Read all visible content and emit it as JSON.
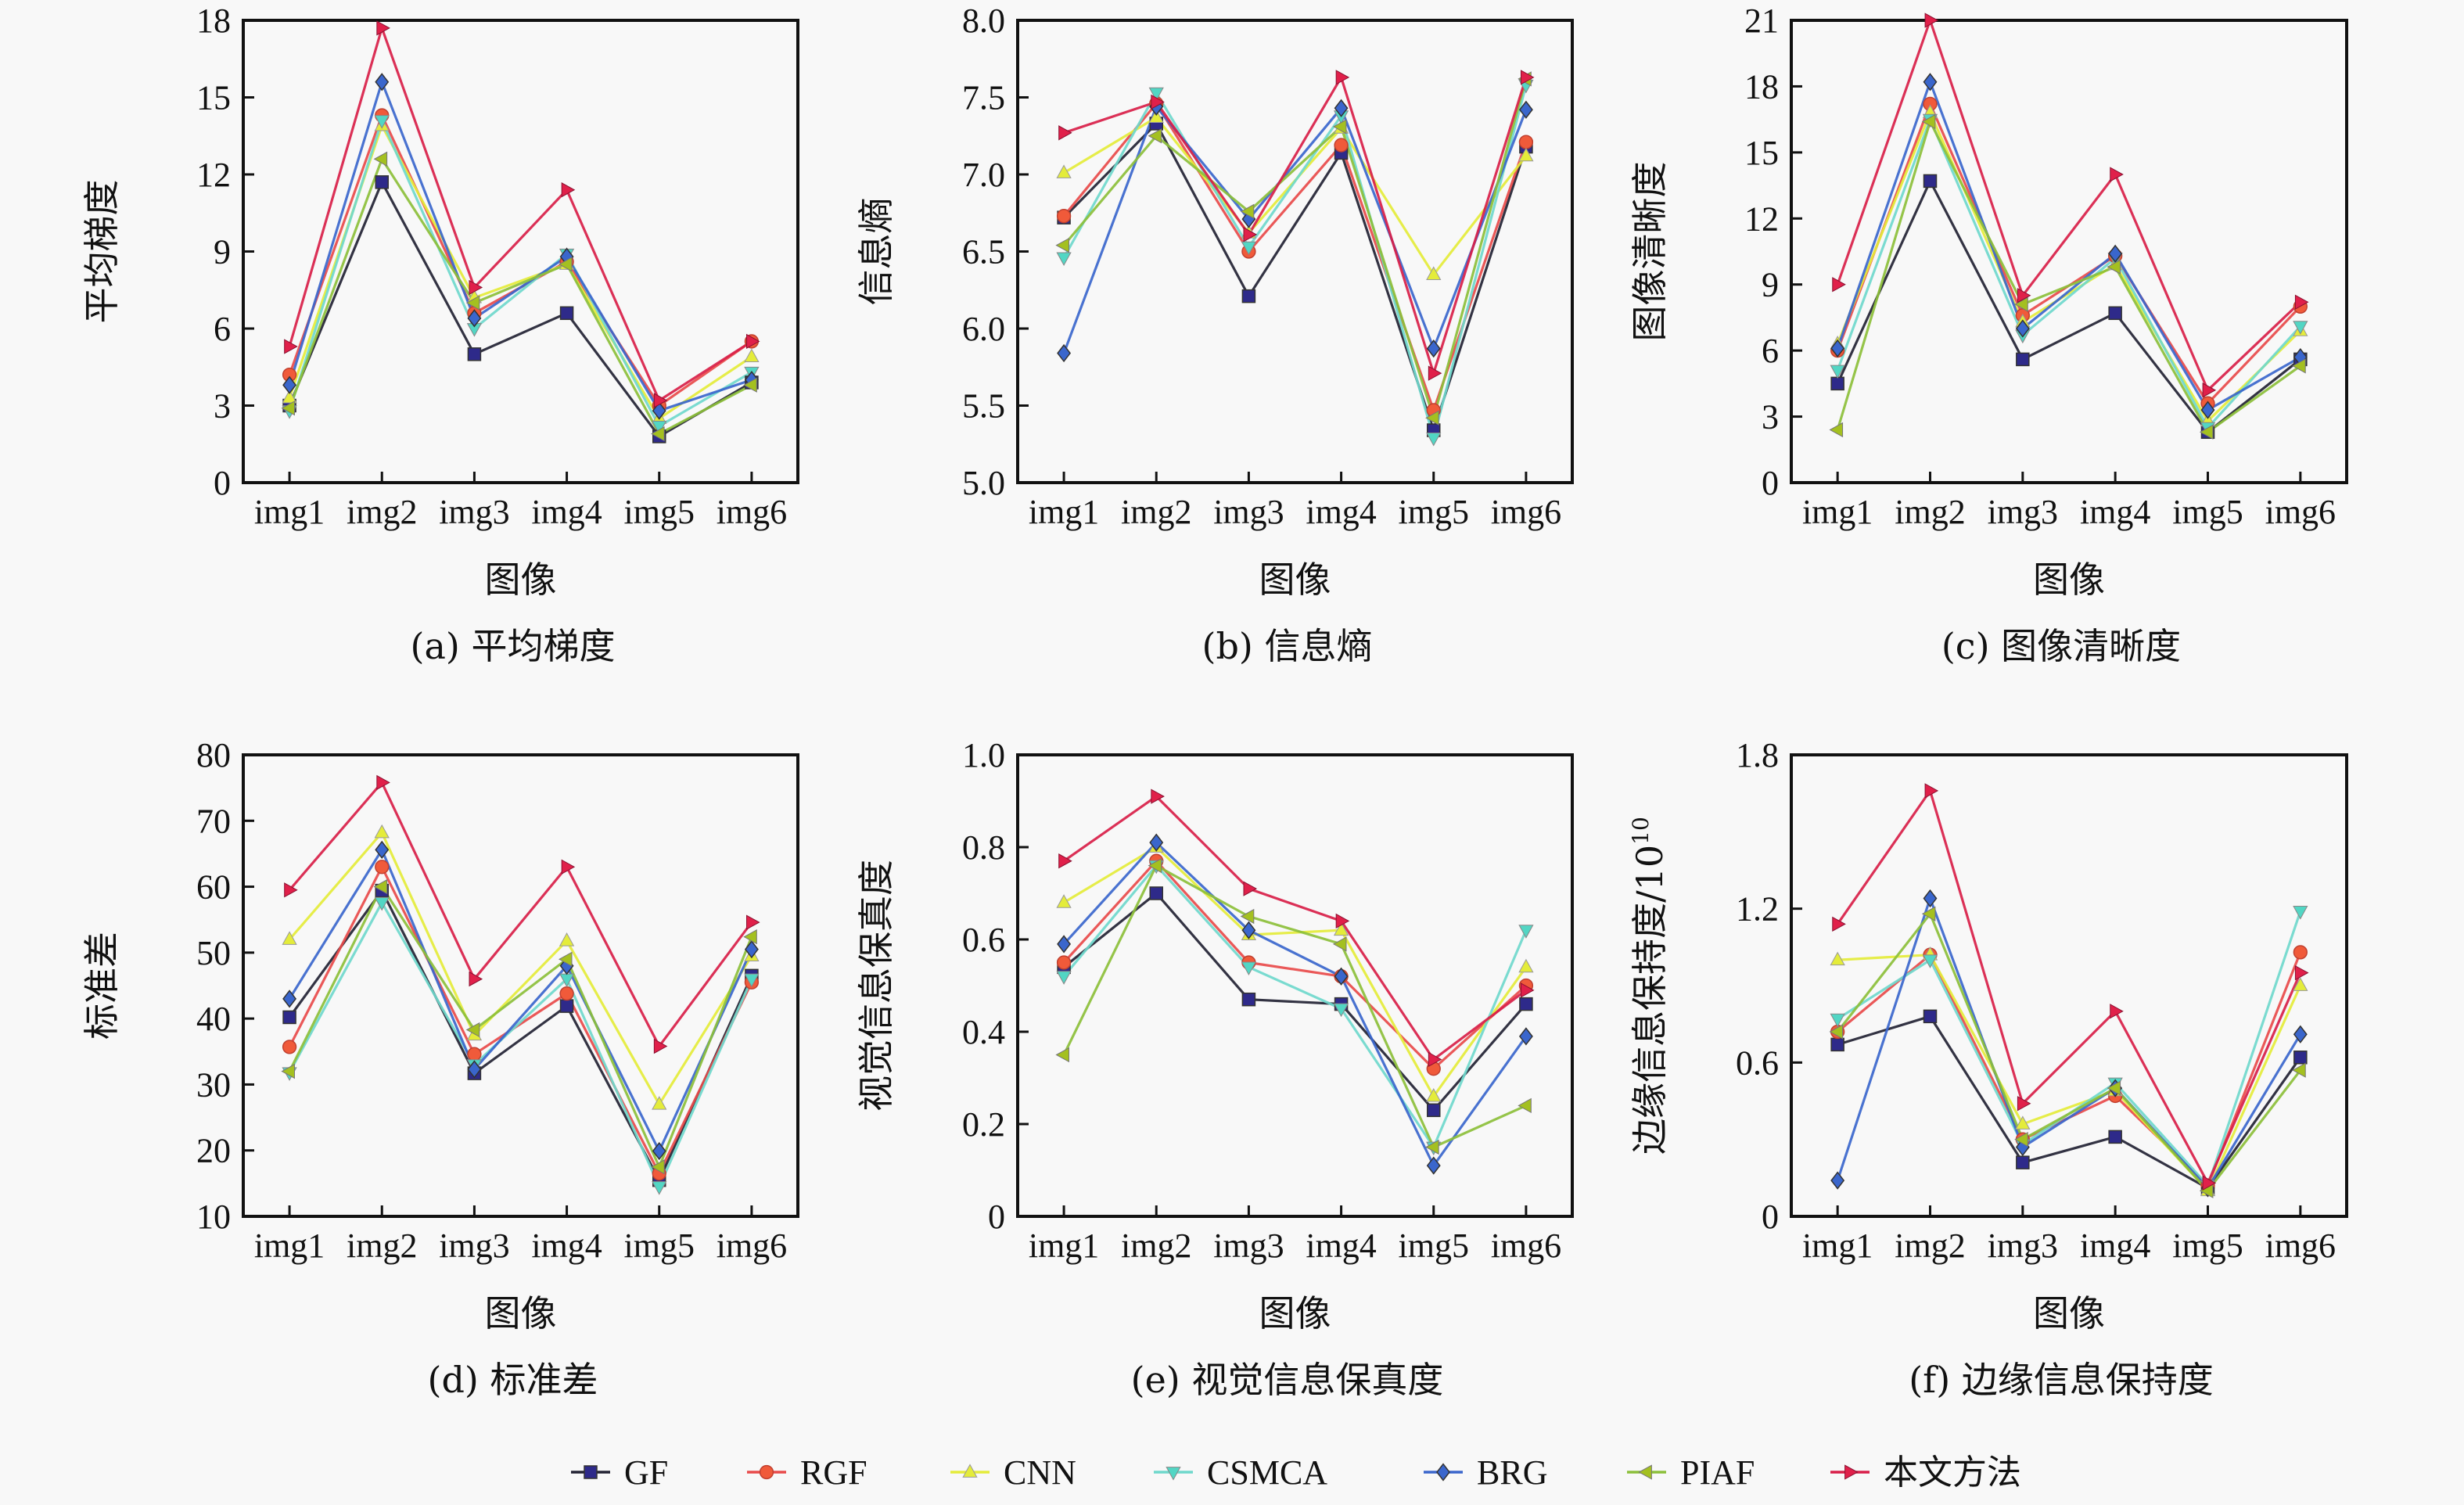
{
  "chart_data": [
    {
      "type": "line",
      "caption": "(a) 平均梯度",
      "title": "平均梯度",
      "xlabel": "图像",
      "ylabel": "平均梯度",
      "ylabel_sup": "",
      "categories": [
        "img1",
        "img2",
        "img3",
        "img4",
        "img5",
        "img6"
      ],
      "ylim": [
        0,
        18
      ],
      "yticks": [
        0,
        3,
        6,
        9,
        12,
        15,
        18
      ],
      "ytick_labels": [
        "0",
        "3",
        "6",
        "9",
        "12",
        "15",
        "18"
      ],
      "grid": false,
      "series": [
        {
          "name": "GF",
          "values": [
            3.0,
            11.7,
            5.0,
            6.6,
            1.8,
            3.9
          ]
        },
        {
          "name": "RGF",
          "values": [
            4.2,
            14.3,
            6.6,
            8.6,
            3.0,
            5.5
          ]
        },
        {
          "name": "CNN",
          "values": [
            3.3,
            13.9,
            7.2,
            8.5,
            2.5,
            4.9
          ]
        },
        {
          "name": "CSMCA",
          "values": [
            2.8,
            14.1,
            6.0,
            8.9,
            2.2,
            4.3
          ]
        },
        {
          "name": "BRG",
          "values": [
            3.8,
            15.6,
            6.4,
            8.8,
            2.8,
            4.0
          ]
        },
        {
          "name": "PIAF",
          "values": [
            2.9,
            12.6,
            7.0,
            8.5,
            1.9,
            3.8
          ]
        },
        {
          "name": "本文方法",
          "values": [
            5.3,
            17.7,
            7.6,
            11.4,
            3.2,
            5.5
          ]
        }
      ]
    },
    {
      "type": "line",
      "caption": "(b) 信息熵",
      "title": "信息熵",
      "xlabel": "图像",
      "ylabel": "信息熵",
      "ylabel_sup": "",
      "categories": [
        "img1",
        "img2",
        "img3",
        "img4",
        "img5",
        "img6"
      ],
      "ylim": [
        5.0,
        8.0
      ],
      "yticks": [
        5.0,
        5.5,
        6.0,
        6.5,
        7.0,
        7.5,
        8.0
      ],
      "ytick_labels": [
        "5.0",
        "5.5",
        "6.0",
        "6.5",
        "7.0",
        "7.5",
        "8.0"
      ],
      "grid": false,
      "series": [
        {
          "name": "GF",
          "values": [
            6.72,
            7.33,
            6.21,
            7.14,
            5.34,
            7.18
          ]
        },
        {
          "name": "RGF",
          "values": [
            6.73,
            7.46,
            6.5,
            7.19,
            5.47,
            7.21
          ]
        },
        {
          "name": "CNN",
          "values": [
            7.01,
            7.37,
            6.62,
            7.3,
            6.35,
            7.12
          ]
        },
        {
          "name": "CSMCA",
          "values": [
            6.46,
            7.53,
            6.53,
            7.38,
            5.29,
            7.58
          ]
        },
        {
          "name": "BRG",
          "values": [
            5.84,
            7.44,
            6.71,
            7.43,
            5.87,
            7.42
          ]
        },
        {
          "name": "PIAF",
          "values": [
            6.54,
            7.25,
            6.76,
            7.31,
            5.42,
            7.62
          ]
        },
        {
          "name": "本文方法",
          "values": [
            7.27,
            7.47,
            6.61,
            7.63,
            5.71,
            7.63
          ]
        }
      ]
    },
    {
      "type": "line",
      "caption": "(c) 图像清晰度",
      "title": "图像清晰度",
      "xlabel": "图像",
      "ylabel": "图像清晰度",
      "ylabel_sup": "",
      "categories": [
        "img1",
        "img2",
        "img3",
        "img4",
        "img5",
        "img6"
      ],
      "ylim": [
        0,
        21
      ],
      "yticks": [
        0,
        3,
        6,
        9,
        12,
        15,
        18,
        21
      ],
      "ytick_labels": [
        "0",
        "3",
        "6",
        "9",
        "12",
        "15",
        "18",
        "21"
      ],
      "grid": false,
      "series": [
        {
          "name": "GF",
          "values": [
            4.5,
            13.7,
            5.6,
            7.7,
            2.3,
            5.6
          ]
        },
        {
          "name": "RGF",
          "values": [
            6.0,
            17.2,
            7.6,
            10.3,
            3.6,
            8.0
          ]
        },
        {
          "name": "CNN",
          "values": [
            6.3,
            16.8,
            7.3,
            9.9,
            2.8,
            6.9
          ]
        },
        {
          "name": "CSMCA",
          "values": [
            5.1,
            16.5,
            6.7,
            10.2,
            2.5,
            7.1
          ]
        },
        {
          "name": "BRG",
          "values": [
            6.1,
            18.2,
            7.0,
            10.4,
            3.3,
            5.7
          ]
        },
        {
          "name": "PIAF",
          "values": [
            2.4,
            16.4,
            8.1,
            9.8,
            2.3,
            5.3
          ]
        },
        {
          "name": "本文方法",
          "values": [
            9.0,
            21.0,
            8.5,
            14.0,
            4.2,
            8.2
          ]
        }
      ]
    },
    {
      "type": "line",
      "caption": "(d) 标准差",
      "title": "标准差",
      "xlabel": "图像",
      "ylabel": "标准差",
      "ylabel_sup": "",
      "categories": [
        "img1",
        "img2",
        "img3",
        "img4",
        "img5",
        "img6"
      ],
      "ylim": [
        10,
        80
      ],
      "yticks": [
        10,
        20,
        30,
        40,
        50,
        60,
        70,
        80
      ],
      "ytick_labels": [
        "10",
        "20",
        "30",
        "40",
        "50",
        "60",
        "70",
        "80"
      ],
      "grid": false,
      "series": [
        {
          "name": "GF",
          "values": [
            40.2,
            59.4,
            31.7,
            41.9,
            15.5,
            46.5
          ]
        },
        {
          "name": "RGF",
          "values": [
            35.7,
            63.0,
            34.6,
            43.8,
            16.5,
            45.5
          ]
        },
        {
          "name": "CNN",
          "values": [
            52.0,
            68.2,
            37.5,
            51.8,
            27.0,
            49.5
          ]
        },
        {
          "name": "CSMCA",
          "values": [
            31.8,
            57.6,
            33.0,
            46.0,
            14.5,
            46.0
          ]
        },
        {
          "name": "BRG",
          "values": [
            43.0,
            65.6,
            32.3,
            48.0,
            19.9,
            50.5
          ]
        },
        {
          "name": "PIAF",
          "values": [
            32.0,
            60.0,
            38.3,
            49.0,
            17.5,
            52.4
          ]
        },
        {
          "name": "本文方法",
          "values": [
            59.5,
            75.8,
            46.0,
            63.0,
            35.8,
            54.6
          ]
        }
      ]
    },
    {
      "type": "line",
      "caption": "(e) 视觉信息保真度",
      "title": "视觉信息保真度",
      "xlabel": "图像",
      "ylabel": "视觉信息保真度",
      "ylabel_sup": "",
      "categories": [
        "img1",
        "img2",
        "img3",
        "img4",
        "img5",
        "img6"
      ],
      "ylim": [
        0,
        1.0
      ],
      "yticks": [
        0,
        0.2,
        0.4,
        0.6,
        0.8,
        1.0
      ],
      "ytick_labels": [
        "0",
        "0.2",
        "0.4",
        "0.6",
        "0.8",
        "1.0"
      ],
      "grid": false,
      "series": [
        {
          "name": "GF",
          "values": [
            0.54,
            0.7,
            0.47,
            0.46,
            0.23,
            0.46
          ]
        },
        {
          "name": "RGF",
          "values": [
            0.55,
            0.77,
            0.55,
            0.52,
            0.32,
            0.5
          ]
        },
        {
          "name": "CNN",
          "values": [
            0.68,
            0.8,
            0.61,
            0.62,
            0.26,
            0.54
          ]
        },
        {
          "name": "CSMCA",
          "values": [
            0.52,
            0.76,
            0.54,
            0.45,
            0.15,
            0.62
          ]
        },
        {
          "name": "BRG",
          "values": [
            0.59,
            0.81,
            0.62,
            0.52,
            0.11,
            0.39
          ]
        },
        {
          "name": "PIAF",
          "values": [
            0.35,
            0.76,
            0.65,
            0.59,
            0.15,
            0.24
          ]
        },
        {
          "name": "本文方法",
          "values": [
            0.77,
            0.91,
            0.71,
            0.64,
            0.34,
            0.49
          ]
        }
      ]
    },
    {
      "type": "line",
      "caption": "(f) 边缘信息保持度",
      "title": "边缘信息保持度",
      "xlabel": "图像",
      "ylabel": "边缘信息保持度/10",
      "ylabel_sup": "10",
      "categories": [
        "img1",
        "img2",
        "img3",
        "img4",
        "img5",
        "img6"
      ],
      "ylim": [
        0,
        1.8
      ],
      "yticks": [
        0,
        0.6,
        1.2,
        1.8
      ],
      "ytick_labels": [
        "0",
        "0.6",
        "1.2",
        "1.8"
      ],
      "grid": false,
      "series": [
        {
          "name": "GF",
          "values": [
            0.67,
            0.78,
            0.21,
            0.31,
            0.11,
            0.62
          ]
        },
        {
          "name": "RGF",
          "values": [
            0.72,
            1.02,
            0.3,
            0.47,
            0.12,
            1.03
          ]
        },
        {
          "name": "CNN",
          "values": [
            1.0,
            1.02,
            0.36,
            0.49,
            0.1,
            0.9
          ]
        },
        {
          "name": "CSMCA",
          "values": [
            0.77,
            1.0,
            0.28,
            0.52,
            0.12,
            1.19
          ]
        },
        {
          "name": "BRG",
          "values": [
            0.14,
            1.24,
            0.27,
            0.5,
            0.11,
            0.71
          ]
        },
        {
          "name": "PIAF",
          "values": [
            0.72,
            1.18,
            0.3,
            0.5,
            0.1,
            0.57
          ]
        },
        {
          "name": "本文方法",
          "values": [
            1.14,
            1.66,
            0.44,
            0.8,
            0.13,
            0.95
          ]
        }
      ]
    }
  ],
  "legend": {
    "placement": "bottom-center",
    "items": [
      {
        "name": "GF",
        "marker": "square",
        "color": "#2e2a8a"
      },
      {
        "name": "RGF",
        "marker": "circle",
        "color": "#f05a3a"
      },
      {
        "name": "CNN",
        "marker": "triangle-up",
        "color": "#e4ec3a"
      },
      {
        "name": "CSMCA",
        "marker": "triangle-down",
        "color": "#52d6c4"
      },
      {
        "name": "BRG",
        "marker": "diamond",
        "color": "#3a66cc"
      },
      {
        "name": "PIAF",
        "marker": "triangle-left",
        "color": "#a4c020"
      },
      {
        "name": "本文方法",
        "marker": "triangle-right",
        "color": "#e0204a"
      }
    ]
  },
  "line_colors": {
    "GF": "#222233",
    "RGF": "#e84a4a",
    "CNN": "#e4ec3a",
    "CSMCA": "#6fd8cc",
    "BRG": "#3a66cc",
    "PIAF": "#8cbf3a",
    "本文方法": "#d81e48"
  }
}
